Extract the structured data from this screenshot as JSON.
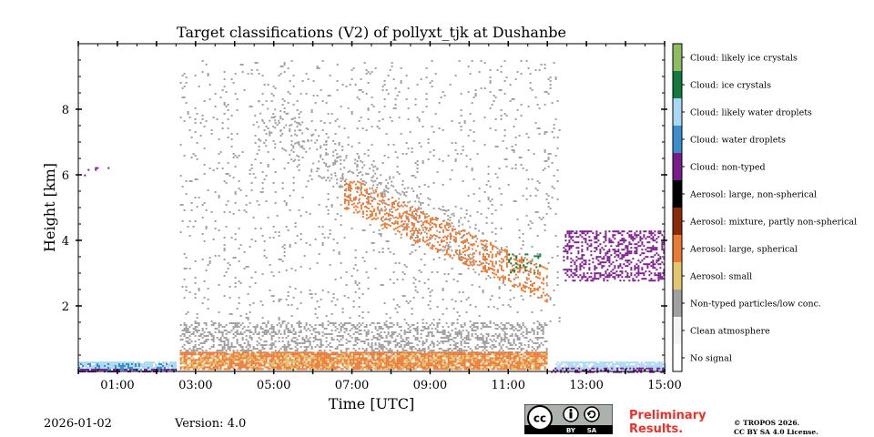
{
  "chart_data": {
    "type": "heatmap",
    "title": "Target classifications (V2) of pollyxt_tjk at Dushanbe",
    "xlabel": "Time [UTC]",
    "ylabel": "Height [km]",
    "xlim": [
      0,
      15
    ],
    "ylim": [
      0,
      10
    ],
    "x_ticks": [
      {
        "value": 1,
        "label": "01:00"
      },
      {
        "value": 3,
        "label": "03:00"
      },
      {
        "value": 5,
        "label": "05:00"
      },
      {
        "value": 7,
        "label": "07:00"
      },
      {
        "value": 9,
        "label": "09:00"
      },
      {
        "value": 11,
        "label": "11:00"
      },
      {
        "value": 13,
        "label": "13:00"
      },
      {
        "value": 15,
        "label": "15:00"
      }
    ],
    "y_ticks": [
      {
        "value": 2,
        "label": "2"
      },
      {
        "value": 4,
        "label": "4"
      },
      {
        "value": 6,
        "label": "6"
      },
      {
        "value": 8,
        "label": "8"
      }
    ],
    "classes": [
      {
        "name": "No signal",
        "color": "#ffffff"
      },
      {
        "name": "Clean atmosphere",
        "color": "#f4f4f4"
      },
      {
        "name": "Non-typed particles/low conc.",
        "color": "#a0a0a0"
      },
      {
        "name": "Aerosol: small",
        "color": "#e3c66f"
      },
      {
        "name": "Aerosol: large, spherical",
        "color": "#ea7a35"
      },
      {
        "name": "Aerosol: mixture, partly non-spherical",
        "color": "#8c2a06"
      },
      {
        "name": "Aerosol: large, non-spherical",
        "color": "#000000"
      },
      {
        "name": "Cloud: non-typed",
        "color": "#7b1c8c"
      },
      {
        "name": "Cloud: water droplets",
        "color": "#3c8dcc"
      },
      {
        "name": "Cloud: likely water droplets",
        "color": "#a9d8f5"
      },
      {
        "name": "Cloud: ice crystals",
        "color": "#127a3c"
      },
      {
        "name": "Cloud: likely ice crystals",
        "color": "#8fbc61"
      }
    ],
    "regions": [
      {
        "class": "Cloud: likely water droplets",
        "t0": 0.0,
        "t1": 2.5,
        "h0": 0.05,
        "h1": 0.3,
        "density": 0.85
      },
      {
        "class": "Cloud: water droplets",
        "t0": 0.0,
        "t1": 2.5,
        "h0": 0.05,
        "h1": 0.25,
        "density": 0.3
      },
      {
        "class": "Cloud: non-typed",
        "t0": 0.0,
        "t1": 2.5,
        "h0": 0.0,
        "h1": 0.08,
        "density": 0.6
      },
      {
        "class": "Cloud: likely water droplets",
        "t0": 12.2,
        "t1": 15.0,
        "h0": 0.05,
        "h1": 0.3,
        "density": 0.8
      },
      {
        "class": "Cloud: non-typed",
        "t0": 12.0,
        "t1": 15.0,
        "h0": 0.0,
        "h1": 0.12,
        "density": 0.5
      },
      {
        "class": "Non-typed particles/low conc.",
        "t0": 2.6,
        "t1": 12.0,
        "h0": 0.5,
        "h1": 1.5,
        "density": 0.35
      },
      {
        "class": "Non-typed particles/low conc.",
        "t0": 2.6,
        "t1": 12.3,
        "h0": 1.5,
        "h1": 9.5,
        "density": 0.04
      },
      {
        "class": "Aerosol: large, spherical",
        "t0": 2.6,
        "t1": 12.0,
        "h0": 0.05,
        "h1": 0.6,
        "density": 0.8
      },
      {
        "class": "Aerosol: small",
        "t0": 2.6,
        "t1": 12.0,
        "h0": 0.1,
        "h1": 0.55,
        "density": 0.25
      },
      {
        "class": "Non-typed particles/low conc.",
        "t0": 4.5,
        "t1": 10.5,
        "h0": 4.5,
        "h1": 8.5,
        "density": 0.12,
        "slope_km_per_h": -0.72
      },
      {
        "class": "Aerosol: large, spherical",
        "t0": 6.8,
        "t1": 12.0,
        "h0": 3.0,
        "h1": 6.0,
        "density": 0.3,
        "slope_km_per_h": -0.55
      },
      {
        "class": "Cloud: non-typed",
        "t0": 12.4,
        "t1": 15.0,
        "h0": 2.8,
        "h1": 4.3,
        "density": 0.35
      },
      {
        "class": "Cloud: ice crystals",
        "t0": 11.0,
        "t1": 11.8,
        "h0": 3.0,
        "h1": 3.6,
        "density": 0.15
      },
      {
        "class": "Cloud: non-typed",
        "t0": 0.1,
        "t1": 0.8,
        "h0": 6.0,
        "h1": 6.4,
        "density": 0.08
      }
    ]
  },
  "footer": {
    "date": "2026-01-02",
    "version": "Version: 4.0",
    "preliminary_line1": "Preliminary",
    "preliminary_line2": "Results.",
    "copyright_line1": "© TROPOS 2026.",
    "copyright_line2": "CC BY SA 4.0 License.",
    "license_badge": {
      "cc": "cc",
      "by": "BY",
      "sa": "SA"
    }
  }
}
